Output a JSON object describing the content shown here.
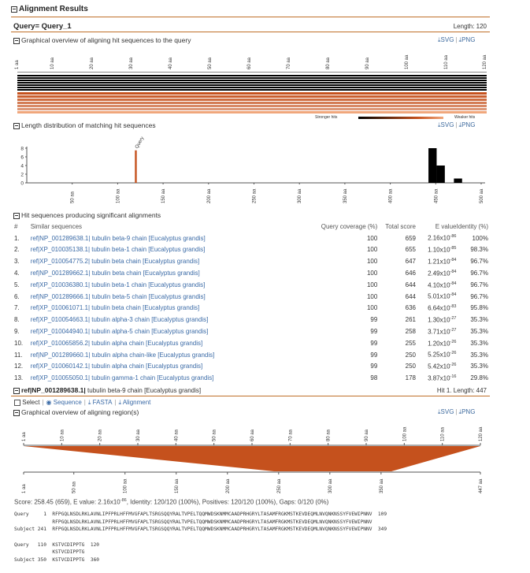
{
  "header": {
    "title": "Alignment Results"
  },
  "query": {
    "label": "Query= Query_1",
    "length": "Length: 120"
  },
  "downloads": {
    "svg": "SVG",
    "png": "PNG",
    "sep": "|"
  },
  "overview": {
    "title": "Graphical overview of aligning hit sequences to the query",
    "ticks": [
      "1 aa",
      "10 aa",
      "20 aa",
      "30 aa",
      "40 aa",
      "50 aa",
      "60 aa",
      "70 aa",
      "80 aa",
      "90 aa",
      "100 aa",
      "110 aa",
      "120 aa"
    ],
    "stronger": "Stronger hits",
    "weaker": "Weaker hits"
  },
  "length_dist": {
    "title": "Length distribution of matching hit sequences",
    "query_label": "Query",
    "chart_data": {
      "type": "bar",
      "title": "Length distribution of matching hit sequences",
      "yticks": [
        "8",
        "6",
        "4",
        "2",
        "0"
      ],
      "ylim": [
        0,
        8
      ],
      "xlim": [
        0,
        520
      ],
      "xticks": [
        "50 aa",
        "100 aa",
        "150 aa",
        "200 aa",
        "250 aa",
        "300 aa",
        "350 aa",
        "400 aa",
        "450 aa",
        "500 aa"
      ],
      "xtick_values": [
        50,
        100,
        150,
        200,
        250,
        300,
        350,
        400,
        450,
        500
      ],
      "query_marker": {
        "length": 120,
        "height": 7.5,
        "label": "Query"
      },
      "bars": [
        {
          "x0": 442,
          "x1": 451,
          "count": 8
        },
        {
          "x0": 451,
          "x1": 460,
          "count": 4
        },
        {
          "x0": 460,
          "x1": 470,
          "count": 0
        },
        {
          "x0": 470,
          "x1": 479,
          "count": 1
        }
      ]
    }
  },
  "hits_section": {
    "title": "Hit sequences producing significant alignments",
    "columns": {
      "num": "#",
      "seq": "Similar sequences",
      "cov": "Query coverage (%)",
      "score": "Total score",
      "evalue": "E value",
      "identity": "Identity (%)"
    },
    "rows": [
      {
        "num": "1.",
        "acc": "ref|NP_001289638.1|",
        "desc": "tubulin beta-9 chain [Eucalyptus grandis]",
        "cov": "100",
        "score": "659",
        "e_base": "2.16x10",
        "e_exp": "-86",
        "ident": "100%"
      },
      {
        "num": "2.",
        "acc": "ref|XP_010035138.1|",
        "desc": "tubulin beta-1 chain [Eucalyptus grandis]",
        "cov": "100",
        "score": "655",
        "e_base": "1.10x10",
        "e_exp": "-85",
        "ident": "98.3%"
      },
      {
        "num": "3.",
        "acc": "ref|XP_010054775.2|",
        "desc": "tubulin beta chain [Eucalyptus grandis]",
        "cov": "100",
        "score": "647",
        "e_base": "1.21x10",
        "e_exp": "-84",
        "ident": "96.7%"
      },
      {
        "num": "4.",
        "acc": "ref|NP_001289662.1|",
        "desc": "tubulin beta chain [Eucalyptus grandis]",
        "cov": "100",
        "score": "646",
        "e_base": "2.49x10",
        "e_exp": "-84",
        "ident": "96.7%"
      },
      {
        "num": "5.",
        "acc": "ref|XP_010036380.1|",
        "desc": "tubulin beta-1 chain [Eucalyptus grandis]",
        "cov": "100",
        "score": "644",
        "e_base": "4.10x10",
        "e_exp": "-84",
        "ident": "96.7%"
      },
      {
        "num": "6.",
        "acc": "ref|NP_001289666.1|",
        "desc": "tubulin beta-5 chain [Eucalyptus grandis]",
        "cov": "100",
        "score": "644",
        "e_base": "5.01x10",
        "e_exp": "-84",
        "ident": "96.7%"
      },
      {
        "num": "7.",
        "acc": "ref|XP_010061071.1|",
        "desc": "tubulin beta chain [Eucalyptus grandis]",
        "cov": "100",
        "score": "636",
        "e_base": "6.64x10",
        "e_exp": "-83",
        "ident": "95.8%"
      },
      {
        "num": "8.",
        "acc": "ref|XP_010054663.1|",
        "desc": "tubulin alpha-3 chain [Eucalyptus grandis]",
        "cov": "99",
        "score": "261",
        "e_base": "1.30x10",
        "e_exp": "-27",
        "ident": "35.3%"
      },
      {
        "num": "9.",
        "acc": "ref|XP_010044940.1|",
        "desc": "tubulin alpha-5 chain [Eucalyptus grandis]",
        "cov": "99",
        "score": "258",
        "e_base": "3.71x10",
        "e_exp": "-27",
        "ident": "35.3%"
      },
      {
        "num": "10.",
        "acc": "ref|XP_010065856.2|",
        "desc": "tubulin alpha chain [Eucalyptus grandis]",
        "cov": "99",
        "score": "255",
        "e_base": "1.20x10",
        "e_exp": "-26",
        "ident": "35.3%"
      },
      {
        "num": "11.",
        "acc": "ref|NP_001289660.1|",
        "desc": "tubulin alpha chain-like [Eucalyptus grandis]",
        "cov": "99",
        "score": "250",
        "e_base": "5.25x10",
        "e_exp": "-26",
        "ident": "35.3%"
      },
      {
        "num": "12.",
        "acc": "ref|XP_010060142.1|",
        "desc": "tubulin alpha chain [Eucalyptus grandis]",
        "cov": "99",
        "score": "250",
        "e_base": "5.42x10",
        "e_exp": "-26",
        "ident": "35.3%"
      },
      {
        "num": "13.",
        "acc": "ref|XP_010055050.1|",
        "desc": "tubulin gamma-1 chain [Eucalyptus grandis]",
        "cov": "98",
        "score": "178",
        "e_base": "3.87x10",
        "e_exp": "-16",
        "ident": "29.8%"
      }
    ]
  },
  "hit_detail": {
    "acc": "ref|NP_001289638.1|",
    "desc": "tubulin beta-9 chain [Eucalyptus grandis]",
    "meta": "Hit 1. Length: 447",
    "select": "Select",
    "sequence": "Sequence",
    "fasta": "FASTA",
    "alignment": "Alignment",
    "region_title": "Graphical overview of aligning region(s)",
    "query_ticks": [
      "1 aa",
      "10 aa",
      "20 aa",
      "30 aa",
      "40 aa",
      "50 aa",
      "60 aa",
      "70 aa",
      "80 aa",
      "90 aa",
      "100 aa",
      "110 aa",
      "120 aa"
    ],
    "subject_ticks": [
      "1 aa",
      "50 aa",
      "100 aa",
      "150 aa",
      "200 aa",
      "250 aa",
      "300 aa",
      "350 aa",
      "447 aa"
    ],
    "score_line": "Score: 258.45 (659), E value: 2.16x10",
    "score_exp": "-86",
    "score_rest": ", Identity: 120/120 (100%), Positives: 120/120 (100%), Gaps: 0/120 (0%)",
    "alignment_lines": [
      "Query     1  RFPGQLNSDLRKLAVNLIPFPRLHFFMVGFAPLTSRGSQQYRALTVPELTQQMWDSKNMMCAADPRHGRYLTASAMFRGKMSTKEVDEQMLNVQNKNSSYFVEWIPNNV  109",
      "             RFPGQLNSDLRKLAVNLIPFPRLHFFMVGFAPLTSRGSQQYRALTVPELTQQMWDSKNMMCAADPRHGRYLTASAMFRGKMSTKEVDEQMLNVQNKNSSYFVEWIPNNV",
      "Subject 241  RFPGQLNSDLRKLAVNLIPFPRLHFFMVGFAPLTSRGSQQYRALTVPELTQQMWDSKNMMCAADPRHGRYLTASAMFRGKMSTKEVDEQMLNVQNKNSSYFVEWIPNNV  349",
      "",
      "Query   110  KSTVCDIPPTG  120",
      "             KSTVCDIPPTG",
      "Subject 350  KSTVCDIPPTG  360"
    ]
  },
  "colors": {
    "orange": "#c5511d",
    "light_orange": "#f0a77c",
    "black": "#000000",
    "accent_rule": "#c0702a"
  }
}
